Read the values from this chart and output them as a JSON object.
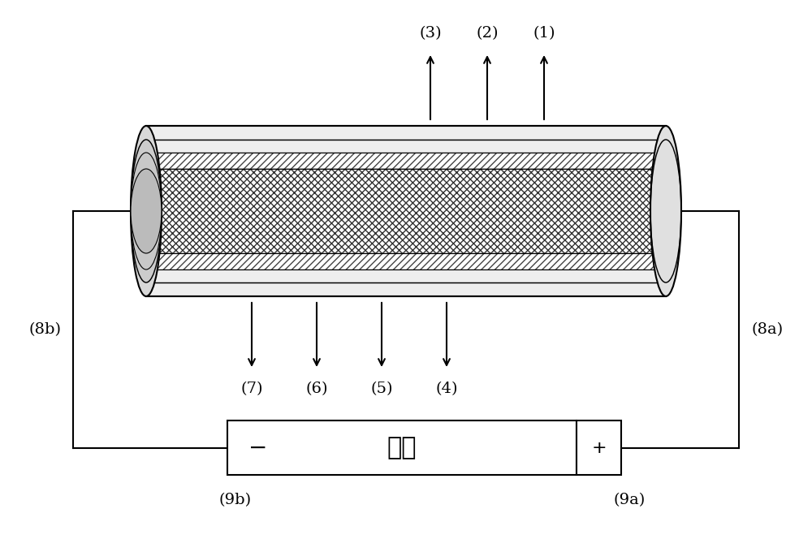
{
  "bg_color": "#ffffff",
  "line_color": "#000000",
  "label_8b": "(8b)",
  "label_8a": "(8a)",
  "label_9b": "(9b)",
  "label_9a": "(9a)",
  "battery_label": "电池",
  "minus_label": "−",
  "plus_label": "+"
}
